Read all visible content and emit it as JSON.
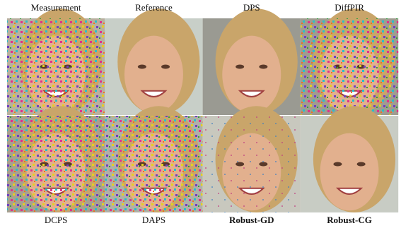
{
  "top_row": [
    "Measurement",
    "Reference",
    "DPS",
    "DiffPIR"
  ],
  "bottom_row": [
    "DCPS",
    "DAPS",
    "Robust-GD",
    "Robust-CG"
  ]
}
